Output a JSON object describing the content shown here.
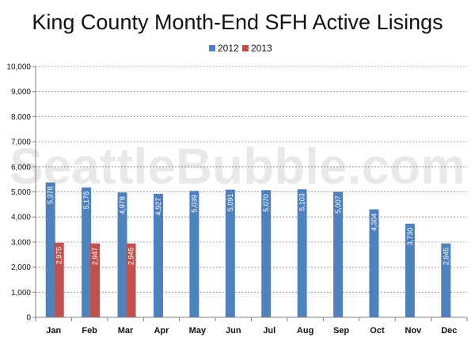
{
  "watermark": "SeattleBubble.com",
  "colors": {
    "series_2012": "#4f81bd",
    "series_2013": "#c0504d",
    "gridline": "#8c8c8c",
    "axis": "#808080"
  },
  "chart_data": {
    "type": "bar",
    "title": "King County Month-End SFH Active Lisings",
    "xlabel": "",
    "ylabel": "",
    "categories": [
      "Jan",
      "Feb",
      "Mar",
      "Apr",
      "May",
      "Jun",
      "Jul",
      "Aug",
      "Sep",
      "Oct",
      "Nov",
      "Dec"
    ],
    "series": [
      {
        "name": "2012",
        "values": [
          5378,
          5178,
          4978,
          4927,
          5039,
          5091,
          5070,
          5103,
          5007,
          4304,
          3730,
          2945
        ],
        "labels": [
          "5,378",
          "5,178",
          "4,978",
          "4,927",
          "5,039",
          "5,091",
          "5,070",
          "5,103",
          "5,007",
          "4,304",
          "3,730",
          "2,945"
        ]
      },
      {
        "name": "2013",
        "values": [
          2975,
          2947,
          2945,
          null,
          null,
          null,
          null,
          null,
          null,
          null,
          null,
          null
        ],
        "labels": [
          "2,975",
          "2,947",
          "2,945",
          "",
          "",
          "",
          "",
          "",
          "",
          "",
          "",
          ""
        ]
      }
    ],
    "ylim": [
      0,
      10000
    ],
    "y_ticks": [
      "0",
      "1,000",
      "2,000",
      "3,000",
      "4,000",
      "5,000",
      "6,000",
      "7,000",
      "8,000",
      "9,000",
      "10,000"
    ],
    "grid": true,
    "grid_style": "dashed",
    "legend_position": "top-center",
    "data_label_orientation": "vertical"
  }
}
